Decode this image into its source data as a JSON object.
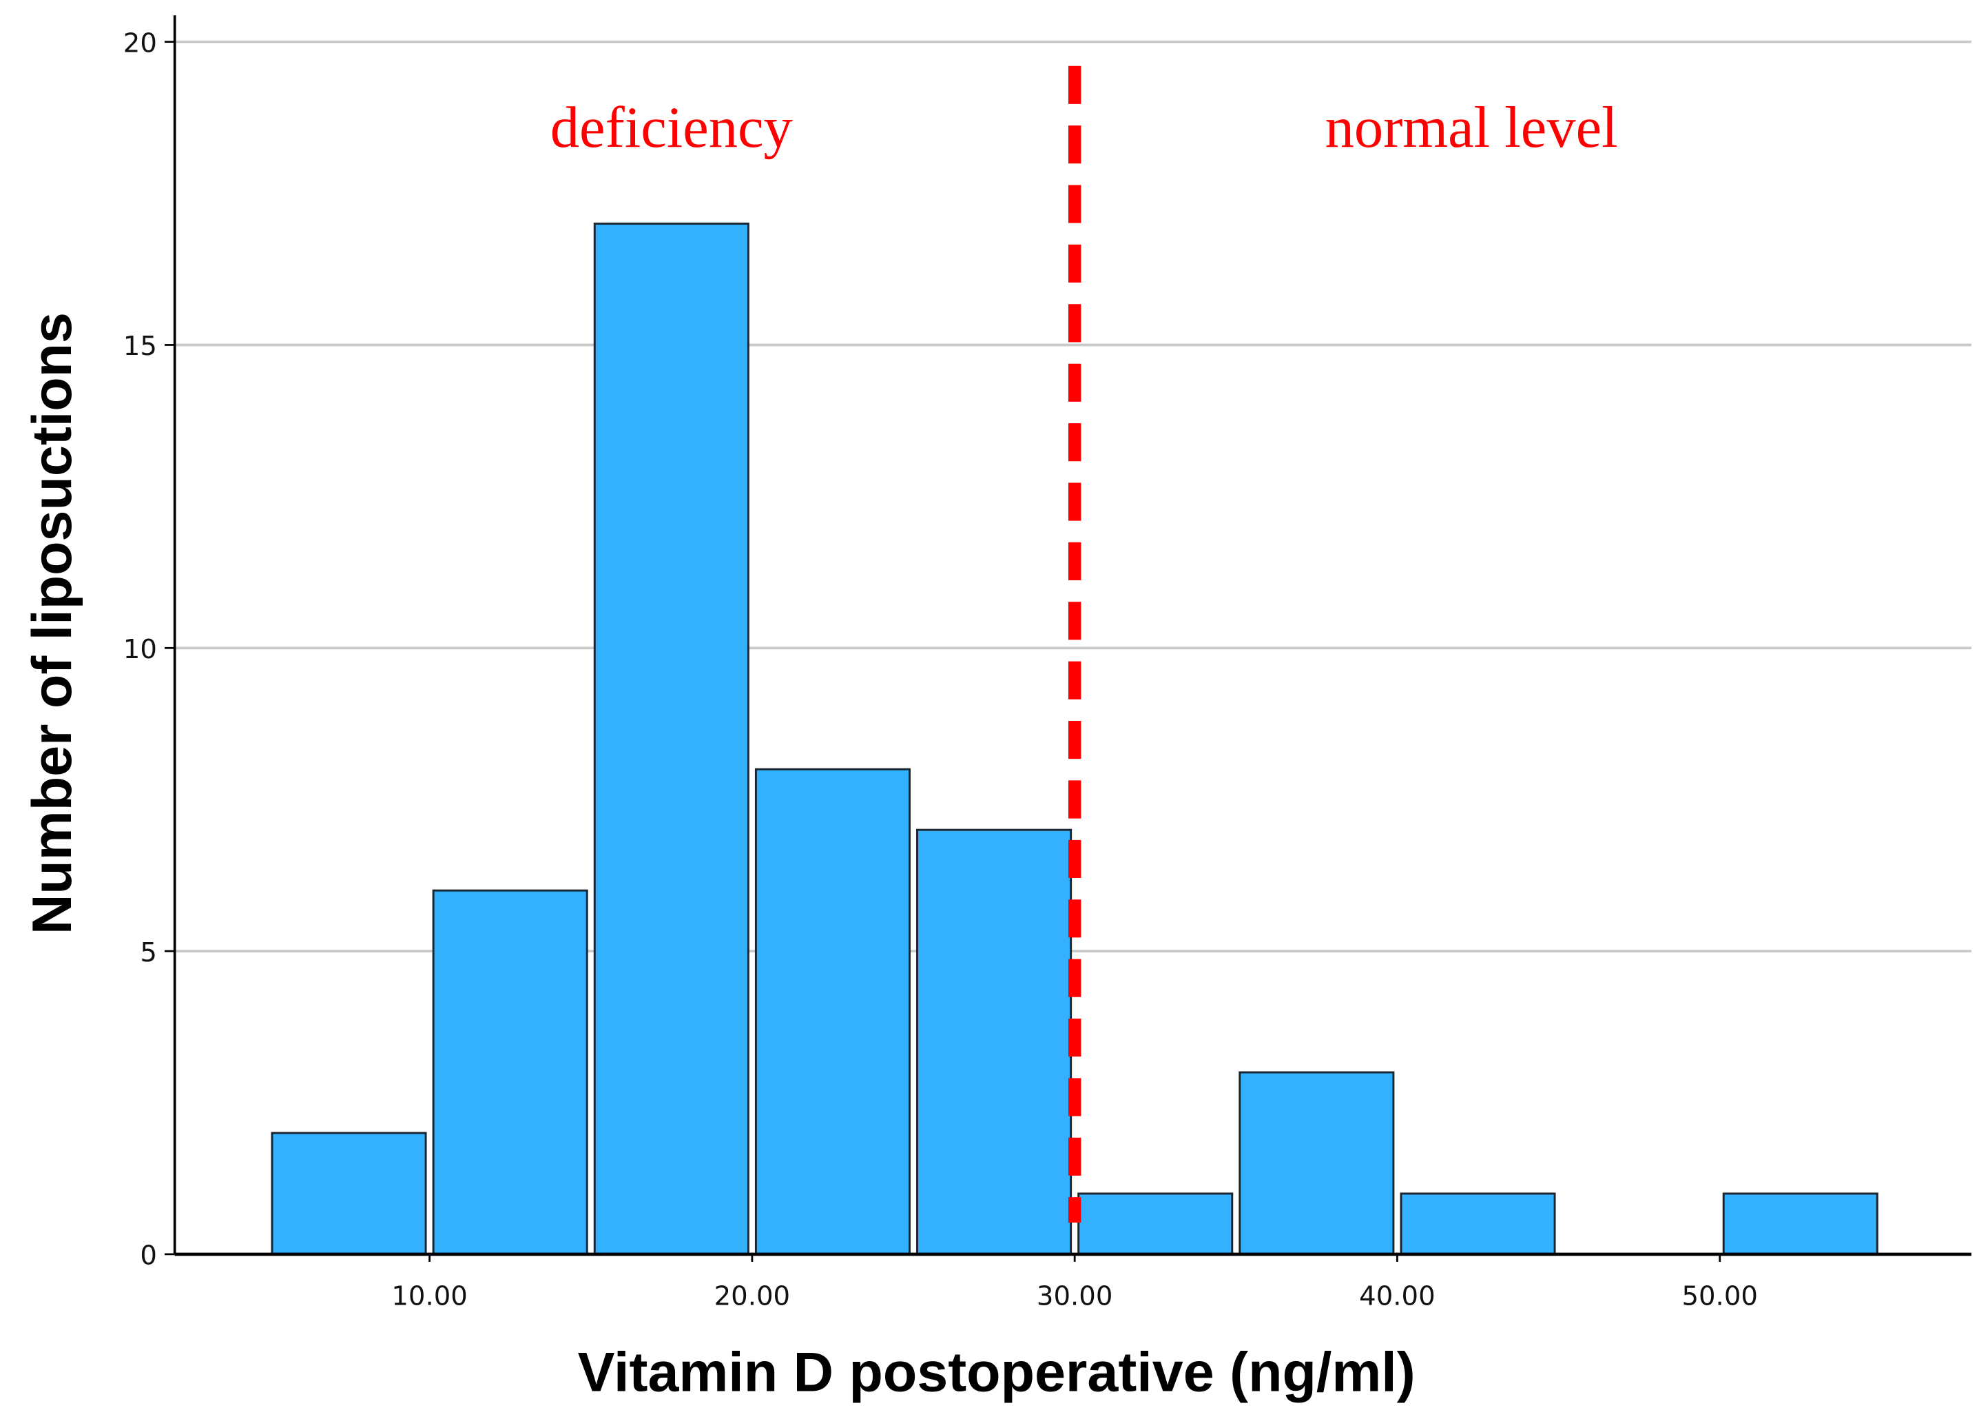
{
  "chart_data": {
    "type": "bar",
    "subtype": "histogram",
    "xlabel": "Vitamin D postoperative (ng/ml)",
    "ylabel": "Number of liposuctions",
    "bins": [
      [
        5,
        10
      ],
      [
        10,
        15
      ],
      [
        15,
        20
      ],
      [
        20,
        25
      ],
      [
        25,
        30
      ],
      [
        30,
        35
      ],
      [
        35,
        40
      ],
      [
        40,
        45
      ],
      [
        45,
        50
      ],
      [
        50,
        55
      ]
    ],
    "values": [
      2,
      6,
      17,
      8,
      7,
      1,
      3,
      1,
      0,
      1
    ],
    "xlim": [
      2.1,
      57.8
    ],
    "ylim": [
      0,
      20.5
    ],
    "xticks": [
      10,
      20,
      30,
      40,
      50
    ],
    "xtick_labels": [
      "10.00",
      "20.00",
      "30.00",
      "40.00",
      "50.00"
    ],
    "yticks": [
      0,
      5,
      10,
      15,
      20
    ],
    "ytick_labels": [
      "0",
      "5",
      "10",
      "15",
      "20"
    ],
    "grid": "horizontal",
    "reference_line": {
      "x": 30,
      "style": "dashed",
      "color": "#ff0000"
    },
    "annotations": [
      {
        "text": "deficiency",
        "x": 17.5,
        "y": 18.6
      },
      {
        "text": "normal level",
        "x": 42.3,
        "y": 18.6
      }
    ],
    "bar_color": "#33b1ff"
  }
}
